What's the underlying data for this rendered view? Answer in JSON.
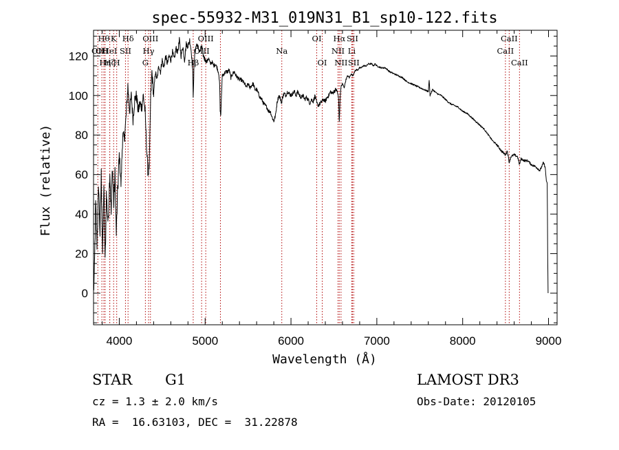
{
  "chart_data": {
    "type": "line",
    "title": "spec-55932-M31_019N31_B1_sp10-122.fits",
    "xlabel": "Wavelength (Å)",
    "ylabel": "Flux (relative)",
    "xlim": [
      3700,
      9100
    ],
    "ylim": [
      -16,
      133
    ],
    "xticks": [
      4000,
      5000,
      6000,
      7000,
      8000,
      9000
    ],
    "yticks": [
      0,
      20,
      40,
      60,
      80,
      100,
      120
    ],
    "grid": false,
    "series": [
      {
        "name": "flux",
        "anchors": [
          [
            3700,
            0
          ],
          [
            3710,
            10
          ],
          [
            3725,
            45
          ],
          [
            3740,
            25
          ],
          [
            3760,
            55
          ],
          [
            3775,
            30
          ],
          [
            3790,
            60
          ],
          [
            3805,
            20
          ],
          [
            3820,
            55
          ],
          [
            3835,
            15
          ],
          [
            3850,
            50
          ],
          [
            3870,
            35
          ],
          [
            3890,
            62
          ],
          [
            3905,
            40
          ],
          [
            3920,
            65
          ],
          [
            3935,
            45
          ],
          [
            3950,
            60
          ],
          [
            3965,
            30
          ],
          [
            3980,
            50
          ],
          [
            4000,
            70
          ],
          [
            4020,
            55
          ],
          [
            4040,
            80
          ],
          [
            4060,
            78
          ],
          [
            4080,
            90
          ],
          [
            4100,
            105
          ],
          [
            4120,
            92
          ],
          [
            4140,
            100
          ],
          [
            4160,
            88
          ],
          [
            4180,
            98
          ],
          [
            4200,
            100
          ],
          [
            4220,
            92
          ],
          [
            4240,
            96
          ],
          [
            4260,
            94
          ],
          [
            4280,
            100
          ],
          [
            4300,
            92
          ],
          [
            4320,
            72
          ],
          [
            4335,
            60
          ],
          [
            4350,
            65
          ],
          [
            4365,
            98
          ],
          [
            4380,
            112
          ],
          [
            4400,
            100
          ],
          [
            4420,
            112
          ],
          [
            4440,
            108
          ],
          [
            4460,
            115
          ],
          [
            4480,
            112
          ],
          [
            4500,
            118
          ],
          [
            4520,
            114
          ],
          [
            4540,
            120
          ],
          [
            4560,
            116
          ],
          [
            4580,
            120
          ],
          [
            4600,
            118
          ],
          [
            4620,
            122
          ],
          [
            4640,
            118
          ],
          [
            4660,
            124
          ],
          [
            4680,
            122
          ],
          [
            4700,
            128
          ],
          [
            4720,
            120
          ],
          [
            4740,
            125
          ],
          [
            4760,
            118
          ],
          [
            4780,
            126
          ],
          [
            4800,
            125
          ],
          [
            4820,
            128
          ],
          [
            4840,
            122
          ],
          [
            4855,
            112
          ],
          [
            4861,
            100
          ],
          [
            4870,
            114
          ],
          [
            4880,
            122
          ],
          [
            4900,
            126
          ],
          [
            4920,
            124
          ],
          [
            4940,
            122
          ],
          [
            4960,
            125
          ],
          [
            4980,
            120
          ],
          [
            5000,
            118
          ],
          [
            5020,
            117
          ],
          [
            5040,
            119
          ],
          [
            5060,
            116
          ],
          [
            5080,
            117
          ],
          [
            5100,
            115
          ],
          [
            5120,
            116
          ],
          [
            5140,
            114
          ],
          [
            5160,
            111
          ],
          [
            5170,
            104
          ],
          [
            5175,
            92
          ],
          [
            5183,
            90
          ],
          [
            5190,
            100
          ],
          [
            5200,
            110
          ],
          [
            5220,
            111
          ],
          [
            5240,
            112
          ],
          [
            5260,
            112
          ],
          [
            5280,
            113
          ],
          [
            5300,
            109
          ],
          [
            5320,
            111
          ],
          [
            5340,
            112
          ],
          [
            5360,
            110
          ],
          [
            5380,
            109
          ],
          [
            5400,
            108
          ],
          [
            5420,
            108
          ],
          [
            5440,
            107
          ],
          [
            5460,
            106
          ],
          [
            5480,
            104
          ],
          [
            5500,
            106
          ],
          [
            5520,
            104
          ],
          [
            5540,
            105
          ],
          [
            5560,
            106
          ],
          [
            5580,
            103
          ],
          [
            5600,
            103
          ],
          [
            5620,
            101
          ],
          [
            5640,
            99
          ],
          [
            5660,
            98
          ],
          [
            5680,
            96
          ],
          [
            5700,
            95
          ],
          [
            5720,
            94
          ],
          [
            5740,
            92
          ],
          [
            5760,
            92
          ],
          [
            5780,
            89
          ],
          [
            5800,
            87
          ],
          [
            5820,
            90
          ],
          [
            5840,
            97
          ],
          [
            5860,
            100
          ],
          [
            5880,
            98
          ],
          [
            5893,
            96
          ],
          [
            5900,
            99
          ],
          [
            5920,
            101
          ],
          [
            5940,
            100
          ],
          [
            5960,
            102
          ],
          [
            5980,
            101
          ],
          [
            6000,
            100
          ],
          [
            6020,
            101
          ],
          [
            6040,
            102
          ],
          [
            6060,
            100
          ],
          [
            6080,
            102
          ],
          [
            6100,
            100
          ],
          [
            6120,
            99
          ],
          [
            6140,
            100
          ],
          [
            6160,
            98
          ],
          [
            6180,
            99
          ],
          [
            6200,
            98
          ],
          [
            6220,
            96
          ],
          [
            6240,
            98
          ],
          [
            6260,
            97
          ],
          [
            6280,
            100
          ],
          [
            6300,
            96
          ],
          [
            6320,
            95
          ],
          [
            6340,
            96
          ],
          [
            6360,
            97
          ],
          [
            6380,
            98
          ],
          [
            6400,
            97
          ],
          [
            6420,
            99
          ],
          [
            6440,
            100
          ],
          [
            6460,
            102
          ],
          [
            6480,
            101
          ],
          [
            6500,
            102
          ],
          [
            6520,
            103
          ],
          [
            6540,
            102
          ],
          [
            6555,
            98
          ],
          [
            6563,
            86
          ],
          [
            6570,
            96
          ],
          [
            6580,
            104
          ],
          [
            6600,
            106
          ],
          [
            6620,
            104
          ],
          [
            6640,
            108
          ],
          [
            6660,
            110
          ],
          [
            6680,
            109
          ],
          [
            6700,
            111
          ],
          [
            6720,
            110
          ],
          [
            6740,
            112
          ],
          [
            6760,
            113
          ],
          [
            6780,
            113
          ],
          [
            6800,
            114
          ],
          [
            6820,
            114
          ],
          [
            6840,
            115
          ],
          [
            6860,
            115
          ],
          [
            6880,
            115
          ],
          [
            6900,
            116
          ],
          [
            6920,
            116
          ],
          [
            6940,
            116
          ],
          [
            6960,
            115
          ],
          [
            6980,
            116
          ],
          [
            7000,
            115
          ],
          [
            7050,
            114
          ],
          [
            7100,
            114
          ],
          [
            7150,
            112
          ],
          [
            7200,
            111
          ],
          [
            7250,
            110
          ],
          [
            7300,
            109
          ],
          [
            7350,
            107
          ],
          [
            7400,
            106
          ],
          [
            7450,
            105
          ],
          [
            7500,
            104
          ],
          [
            7550,
            103
          ],
          [
            7600,
            102
          ],
          [
            7610,
            108
          ],
          [
            7620,
            100
          ],
          [
            7650,
            103
          ],
          [
            7700,
            101
          ],
          [
            7750,
            100
          ],
          [
            7800,
            98
          ],
          [
            7850,
            96
          ],
          [
            7900,
            95
          ],
          [
            7950,
            94
          ],
          [
            8000,
            92
          ],
          [
            8050,
            91
          ],
          [
            8100,
            89
          ],
          [
            8150,
            87
          ],
          [
            8200,
            85
          ],
          [
            8250,
            83
          ],
          [
            8300,
            80
          ],
          [
            8350,
            77
          ],
          [
            8400,
            75
          ],
          [
            8450,
            72
          ],
          [
            8498,
            70
          ],
          [
            8520,
            72
          ],
          [
            8542,
            66
          ],
          [
            8560,
            69
          ],
          [
            8600,
            70
          ],
          [
            8640,
            69
          ],
          [
            8662,
            65
          ],
          [
            8680,
            68
          ],
          [
            8720,
            67
          ],
          [
            8760,
            67
          ],
          [
            8800,
            65
          ],
          [
            8850,
            64
          ],
          [
            8900,
            62
          ],
          [
            8940,
            66
          ],
          [
            8960,
            64
          ],
          [
            8975,
            57
          ],
          [
            8985,
            55
          ],
          [
            8990,
            20
          ],
          [
            8995,
            0
          ]
        ],
        "noise": "jagged"
      }
    ],
    "line_markers": [
      {
        "wl": 3750,
        "row": 1,
        "label": "OII"
      },
      {
        "wl": 3797,
        "row": 1,
        "label": "OII"
      },
      {
        "wl": 3835,
        "row": 2,
        "label": "Hη"
      },
      {
        "wl": 3820,
        "row": 0,
        "label": "Hθ"
      },
      {
        "wl": 3889,
        "row": 1,
        "label": "HeI"
      },
      {
        "wl": 3889,
        "row": 2,
        "label": "Hζ"
      },
      {
        "wl": 3934,
        "row": 0,
        "label": "K"
      },
      {
        "wl": 3970,
        "row": 2,
        "label": "H"
      },
      {
        "wl": 4072,
        "row": 1,
        "label": "SII"
      },
      {
        "wl": 4102,
        "row": 0,
        "label": "Hδ"
      },
      {
        "wl": 4304,
        "row": 2,
        "label": "G"
      },
      {
        "wl": 4341,
        "row": 1,
        "label": "Hγ"
      },
      {
        "wl": 4363,
        "row": 0,
        "label": "OIII"
      },
      {
        "wl": 4861,
        "row": 2,
        "label": "Hβ"
      },
      {
        "wl": 4959,
        "row": 1,
        "label": "OIII"
      },
      {
        "wl": 5007,
        "row": 0,
        "label": "OIII"
      },
      {
        "wl": 5178,
        "row": -1,
        "label": ""
      },
      {
        "wl": 5893,
        "row": 1,
        "label": "Na"
      },
      {
        "wl": 6300,
        "row": 0,
        "label": "OI"
      },
      {
        "wl": 6364,
        "row": 2,
        "label": "OI"
      },
      {
        "wl": 6548,
        "row": 1,
        "label": "NII"
      },
      {
        "wl": 6563,
        "row": 0,
        "label": "Hα"
      },
      {
        "wl": 6583,
        "row": 2,
        "label": "NII"
      },
      {
        "wl": 6708,
        "row": 1,
        "label": "Li"
      },
      {
        "wl": 6716,
        "row": 0,
        "label": "SII"
      },
      {
        "wl": 6731,
        "row": 2,
        "label": "SII"
      },
      {
        "wl": 8498,
        "row": 1,
        "label": "CaII"
      },
      {
        "wl": 8542,
        "row": 0,
        "label": "CaII"
      },
      {
        "wl": 8662,
        "row": 2,
        "label": "CaII"
      }
    ]
  },
  "info": {
    "class": "STAR",
    "subclass": "G1",
    "cz": "cz = 1.3 ± 2.0 km/s",
    "coords": "RA =  16.63103, DEC =  31.22878",
    "survey": "LAMOST DR3",
    "obs_date": "Obs-Date: 20120105"
  },
  "colors": {
    "spectrum": "#000000",
    "marker": "#b00000",
    "axes": "#000000"
  }
}
